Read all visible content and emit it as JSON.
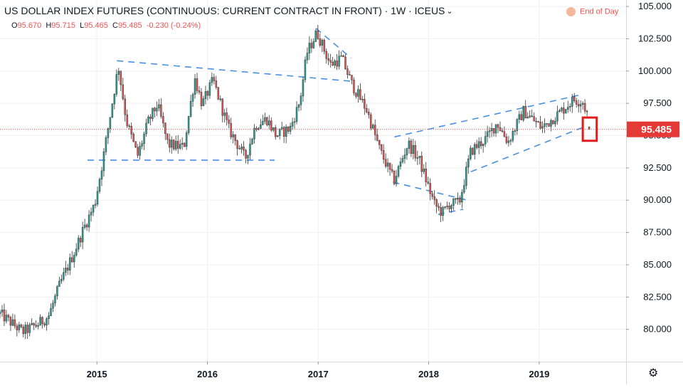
{
  "header": {
    "title": "US DOLLAR INDEX FUTURES (CONTINUOUS: CURRENT CONTRACT IN FRONT) · 1W · ICEUS",
    "open_label": "O",
    "open": "95.670",
    "high_label": "H",
    "high": "95.715",
    "low_label": "L",
    "low": "95.465",
    "close_label": "C",
    "close": "95.485",
    "change": "-0.230",
    "change_pct": "(-0.24%)"
  },
  "end_of_day": "End of Day",
  "colors": {
    "up": "#26a69a",
    "down": "#ef5350",
    "trendline": "#4a90e2",
    "last_price": "#e53935",
    "highlight_box": "#e31b1b"
  },
  "chart_data": {
    "type": "candlestick",
    "timeframe": "1W",
    "last_price": 95.485,
    "last_price_label": "95.485",
    "ylim": [
      77.5,
      105.5
    ],
    "y_ticks": [
      "80.000",
      "82.500",
      "85.000",
      "87.500",
      "90.000",
      "92.500",
      "95.000",
      "97.500",
      "100.000",
      "102.500",
      "105.000"
    ],
    "x_ticks": [
      {
        "label": "2015",
        "date": "2015-01-01"
      },
      {
        "label": "2016",
        "date": "2016-01-01"
      },
      {
        "label": "2017",
        "date": "2017-01-01"
      },
      {
        "label": "2018",
        "date": "2018-01-01"
      },
      {
        "label": "2019",
        "date": "2019-01-01"
      }
    ],
    "x_range": [
      "2014-02-15",
      "2019-10-15"
    ],
    "path": [
      [
        "2014-02-15",
        81.2
      ],
      [
        "2014-05-01",
        79.8
      ],
      [
        "2014-06-20",
        80.4
      ],
      [
        "2014-07-25",
        81.0
      ],
      [
        "2014-09-01",
        83.5
      ],
      [
        "2014-10-15",
        85.8
      ],
      [
        "2014-11-20",
        87.9
      ],
      [
        "2014-12-25",
        89.7
      ],
      [
        "2015-01-20",
        93.0
      ],
      [
        "2015-03-13",
        100.4
      ],
      [
        "2015-04-08",
        96.2
      ],
      [
        "2015-05-15",
        93.4
      ],
      [
        "2015-06-20",
        96.1
      ],
      [
        "2015-07-20",
        97.4
      ],
      [
        "2015-08-24",
        94.3
      ],
      [
        "2015-10-15",
        94.1
      ],
      [
        "2015-11-20",
        99.5
      ],
      [
        "2015-12-15",
        97.4
      ],
      [
        "2016-01-20",
        99.3
      ],
      [
        "2016-03-10",
        95.6
      ],
      [
        "2016-04-22",
        93.8
      ],
      [
        "2016-05-05",
        93.2
      ],
      [
        "2016-06-08",
        95.8
      ],
      [
        "2016-07-15",
        96.3
      ],
      [
        "2016-08-15",
        95.0
      ],
      [
        "2016-10-01",
        95.6
      ],
      [
        "2016-11-01",
        97.6
      ],
      [
        "2016-11-25",
        101.4
      ],
      [
        "2016-12-28",
        103.0
      ],
      [
        "2017-02-10",
        100.5
      ],
      [
        "2017-03-20",
        101.0
      ],
      [
        "2017-04-22",
        99.0
      ],
      [
        "2017-06-10",
        97.0
      ],
      [
        "2017-07-25",
        93.8
      ],
      [
        "2017-09-08",
        91.5
      ],
      [
        "2017-10-25",
        94.4
      ],
      [
        "2017-12-01",
        93.1
      ],
      [
        "2018-01-20",
        89.7
      ],
      [
        "2018-02-15",
        89.0
      ],
      [
        "2018-03-10",
        89.7
      ],
      [
        "2018-04-12",
        89.8
      ],
      [
        "2018-05-20",
        93.8
      ],
      [
        "2018-07-10",
        94.8
      ],
      [
        "2018-08-15",
        96.0
      ],
      [
        "2018-09-20",
        94.5
      ],
      [
        "2018-11-10",
        96.9
      ],
      [
        "2019-01-10",
        95.6
      ],
      [
        "2019-03-10",
        96.8
      ],
      [
        "2019-04-25",
        97.8
      ],
      [
        "2019-05-25",
        97.6
      ],
      [
        "2019-06-10",
        96.6
      ],
      [
        "2019-06-19",
        95.6
      ]
    ],
    "trendlines": [
      {
        "name": "triangle-upper",
        "from": [
          "2015-03-08",
          100.8
        ],
        "to": [
          "2017-04-25",
          99.2
        ]
      },
      {
        "name": "range-support",
        "from": [
          "2014-12-01",
          93.1
        ],
        "to": [
          "2016-08-10",
          93.1
        ]
      },
      {
        "name": "top-channel",
        "from": [
          "2016-12-25",
          103.3
        ],
        "to": [
          "2017-04-20",
          101.0
        ]
      },
      {
        "name": "channel-upper",
        "from": [
          "2017-09-10",
          94.9
        ],
        "to": [
          "2019-05-25",
          98.2
        ]
      },
      {
        "name": "channel-lower",
        "from": [
          "2018-05-20",
          92.2
        ],
        "to": [
          "2019-06-01",
          95.7
        ]
      },
      {
        "name": "wedge-lower",
        "from": [
          "2017-09-05",
          91.4
        ],
        "to": [
          "2018-05-10",
          90.0
        ]
      },
      {
        "name": "base-support",
        "from": [
          "2018-02-01",
          88.9
        ],
        "to": [
          "2018-04-25",
          89.3
        ]
      }
    ],
    "highlight": {
      "from": "2019-05-25",
      "to": "2019-07-10",
      "low": 94.6,
      "high": 96.4
    }
  }
}
